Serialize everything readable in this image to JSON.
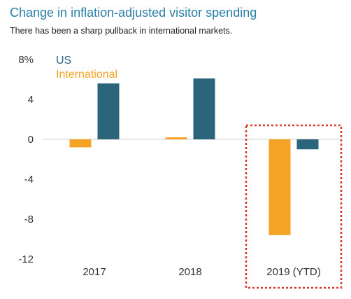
{
  "title": "Change in inflation-adjusted visitor spending",
  "subtitle": "There has been a sharp pullback in international markets.",
  "colors": {
    "us": "#2b657c",
    "international": "#f4a324",
    "highlight": "#d63a2f",
    "title": "#2a7fa8",
    "zero_line": "#cccccc"
  },
  "chart_data": {
    "type": "bar",
    "categories": [
      "2017",
      "2018",
      "2019 (YTD)"
    ],
    "series": [
      {
        "name": "US",
        "values": [
          5.6,
          6.1,
          -1.0
        ]
      },
      {
        "name": "International",
        "values": [
          -0.8,
          0.2,
          -9.6
        ]
      }
    ],
    "yticks": [
      "8%",
      "4",
      "0",
      "-4",
      "-8",
      "-12"
    ],
    "ylim": [
      -12,
      8
    ],
    "legend_position": "top-left",
    "highlighted_category": "2019 (YTD)",
    "grid": false
  }
}
